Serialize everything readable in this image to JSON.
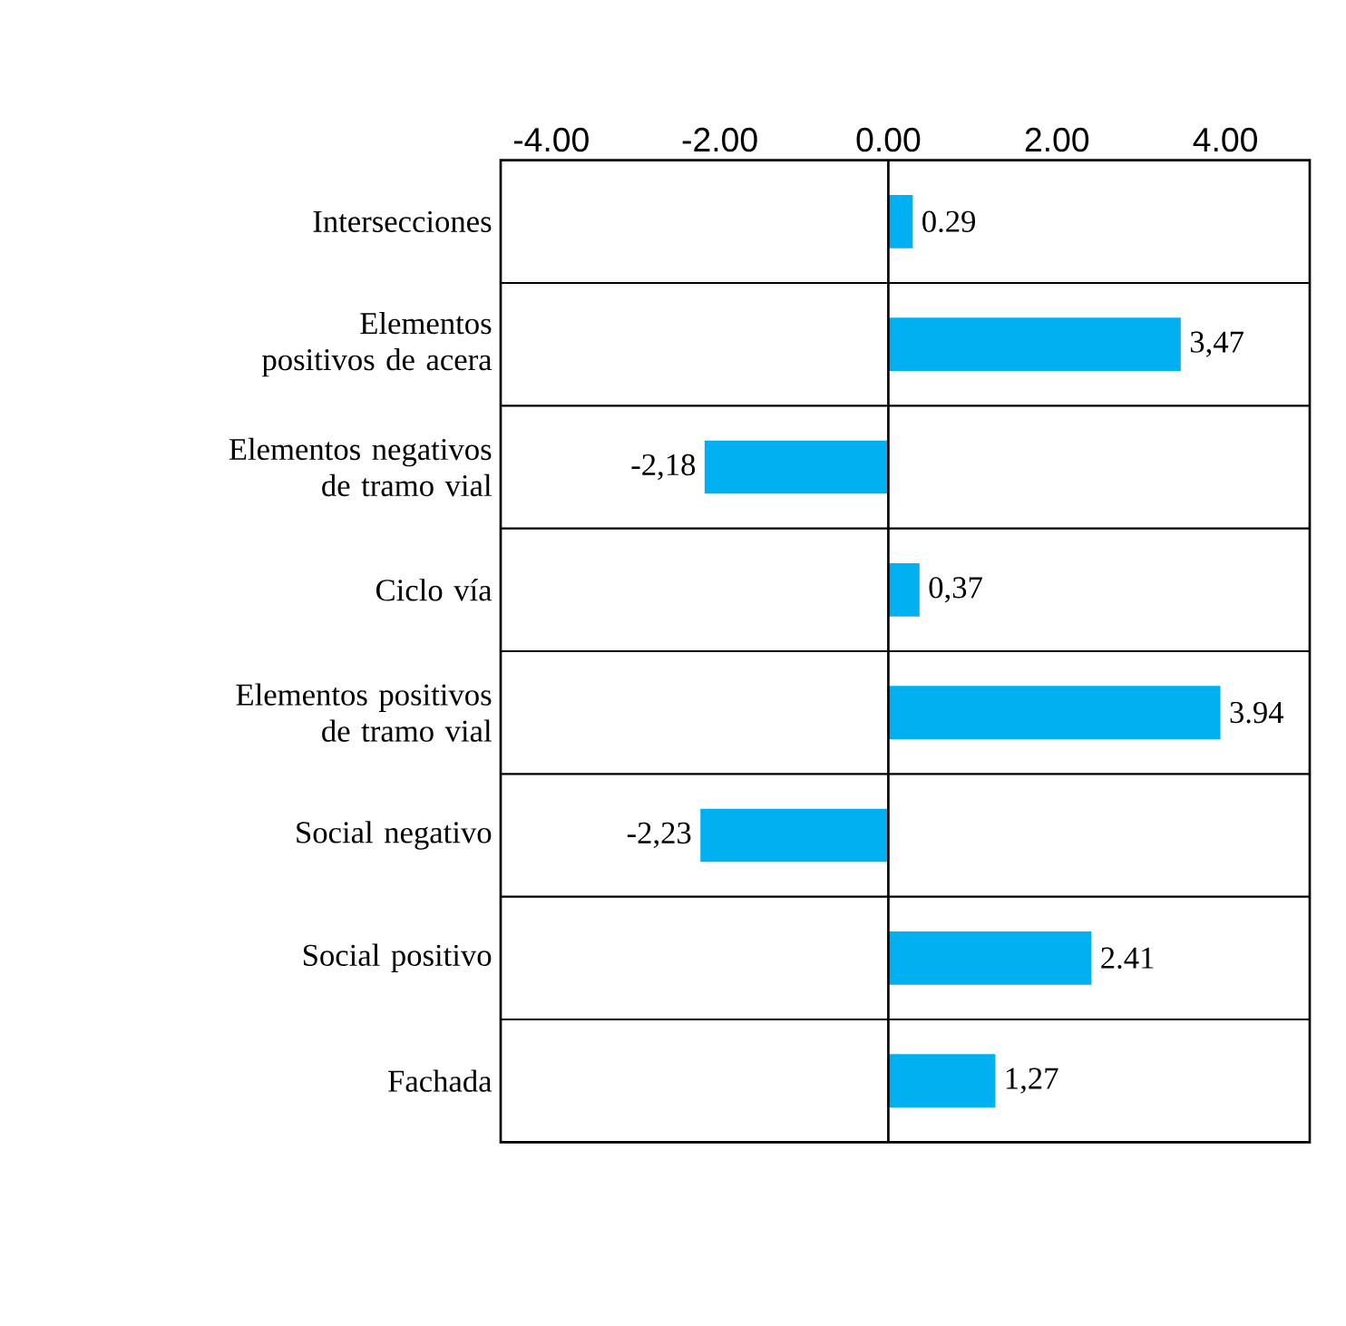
{
  "chart_data": {
    "type": "bar",
    "orientation": "horizontal",
    "categories": [
      "Intersecciones",
      "Elementos positivos de acera",
      "Elementos negativos de tramo vial",
      "Ciclo vía",
      "Elementos positivos de tramo vial",
      "Social negativo",
      "Social positivo",
      "Fachada"
    ],
    "values": [
      0.29,
      3.47,
      -2.18,
      0.37,
      3.94,
      -2.23,
      2.41,
      1.27
    ],
    "value_labels": [
      "0.29",
      "3,47",
      "-2,18",
      "0,37",
      "3.94",
      "-2,23",
      "2.41",
      "1,27"
    ],
    "color": "#00b0f0",
    "xlim": [
      -4.6,
      5.0
    ],
    "xticks": [
      {
        "value": -4,
        "label": "-4.00"
      },
      {
        "value": -2,
        "label": "-2.00"
      },
      {
        "value": 0,
        "label": "0.00"
      },
      {
        "value": 2,
        "label": "2.00"
      },
      {
        "value": 4,
        "label": "4.00"
      }
    ],
    "grid": "y"
  }
}
